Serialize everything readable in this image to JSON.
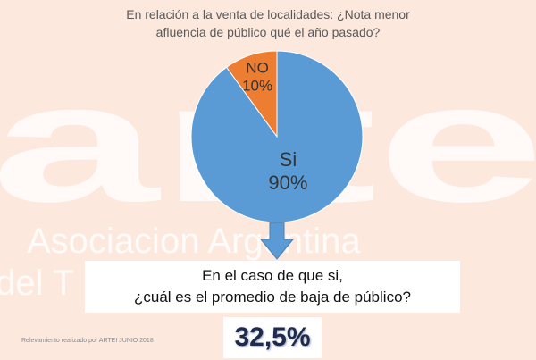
{
  "watermark": {
    "logo_text": "arte",
    "line1": "Asociacion Argentina",
    "line2": "del T                          ien"
  },
  "title": {
    "line1": "En relación a la venta de localidades: ¿Nota menor",
    "line2": "afluencia de público qué el año pasado?"
  },
  "chart_data": {
    "type": "pie",
    "title": "En relación a la venta de localidades: ¿Nota menor afluencia de público qué el año pasado?",
    "slices": [
      {
        "label": "Si",
        "value": 90,
        "value_label": "90%",
        "color": "#5b9bd5"
      },
      {
        "label": "NO",
        "value": 10,
        "value_label": "10%",
        "color": "#ed7d31"
      }
    ]
  },
  "question": {
    "line1": "En el caso de que si,",
    "line2": "¿cuál es el promedio de baja de público?"
  },
  "result": {
    "value": "32,5%"
  },
  "source": "Relevamiento realizado por ARTEI JUNIO 2018",
  "colors": {
    "arrow": "#5b9bd5",
    "background": "#fde8dd"
  }
}
